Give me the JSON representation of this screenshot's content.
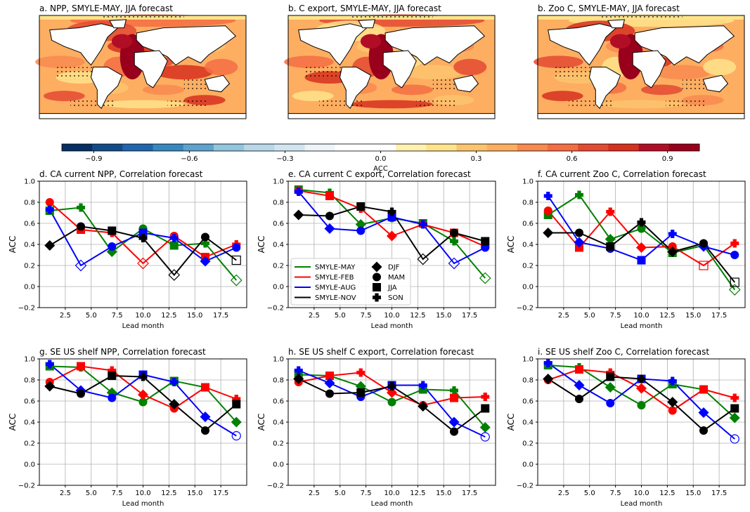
{
  "maps": [
    {
      "title": "a. NPP, SMYLE-MAY, JJA forecast"
    },
    {
      "title": "b. C export, SMYLE-MAY, JJA forecast"
    },
    {
      "title": "b. Zoo C, SMYLE-MAY, JJA forecast"
    }
  ],
  "colorbar": {
    "label": "ACC",
    "ticks": [
      "−0.9",
      "−0.6",
      "−0.3",
      "0.0",
      "0.3",
      "0.6",
      "0.9"
    ],
    "colors": [
      "#053061",
      "#134b87",
      "#2166ac",
      "#3a87bd",
      "#5fa2cb",
      "#92c5de",
      "#b8d7e8",
      "#d1e5f0",
      "#eef4f8",
      "#ffffff",
      "#ffffff",
      "#fff1b0",
      "#fee38b",
      "#fdc46f",
      "#fdae61",
      "#f88950",
      "#f46d43",
      "#e34a33",
      "#d7301f",
      "#b10e26",
      "#99001b"
    ],
    "range": [
      -1,
      1
    ]
  },
  "legend": {
    "lines": [
      {
        "label": "SMYLE-MAY",
        "color": "#008000"
      },
      {
        "label": "SMYLE-FEB",
        "color": "#ff0000"
      },
      {
        "label": "SMYLE-AUG",
        "color": "#0000ff"
      },
      {
        "label": "SMYLE-NOV",
        "color": "#000000"
      }
    ],
    "markers": [
      {
        "label": "DJF",
        "shape": "diamond"
      },
      {
        "label": "MAM",
        "shape": "circle"
      },
      {
        "label": "JJA",
        "shape": "square"
      },
      {
        "label": "SON",
        "shape": "plus"
      }
    ]
  },
  "chart_data": [
    {
      "type": "line",
      "title": "d. CA current NPP, Correlation forecast",
      "xlabel": "Lead month",
      "ylabel": "ACC",
      "xlim": [
        0,
        20
      ],
      "ylim": [
        -0.2,
        1.0
      ],
      "xticks": [
        "2.5",
        "5.0",
        "7.5",
        "10.0",
        "12.5",
        "15.0",
        "17.5"
      ],
      "yticks": [
        "−0.2",
        "0.0",
        "0.2",
        "0.4",
        "0.6",
        "0.8",
        "1.0"
      ],
      "grid": true,
      "x": [
        1,
        4,
        7,
        10,
        13,
        16,
        19
      ],
      "series": [
        {
          "name": "SMYLE-MAY",
          "color": "#008000",
          "values": [
            0.72,
            0.75,
            0.33,
            0.55,
            0.39,
            0.41,
            0.06
          ],
          "markers": [
            "square",
            "plus",
            "diamond",
            "circle",
            "square",
            "plus",
            "diamond"
          ],
          "open": [
            false,
            false,
            false,
            false,
            false,
            false,
            true
          ]
        },
        {
          "name": "SMYLE-FEB",
          "color": "#ff0000",
          "values": [
            0.8,
            0.54,
            0.51,
            0.22,
            0.48,
            0.28,
            0.4
          ],
          "markers": [
            "circle",
            "square",
            "plus",
            "diamond",
            "circle",
            "square",
            "plus"
          ],
          "open": [
            false,
            false,
            false,
            true,
            false,
            false,
            false
          ]
        },
        {
          "name": "SMYLE-AUG",
          "color": "#0000ff",
          "values": [
            0.73,
            0.2,
            0.38,
            0.51,
            0.46,
            0.24,
            0.37
          ],
          "markers": [
            "plus",
            "diamond",
            "circle",
            "square",
            "plus",
            "diamond",
            "circle"
          ],
          "open": [
            false,
            true,
            false,
            false,
            false,
            false,
            false
          ]
        },
        {
          "name": "SMYLE-NOV",
          "color": "#000000",
          "values": [
            0.39,
            0.57,
            0.53,
            0.46,
            0.11,
            0.47,
            0.25
          ],
          "markers": [
            "diamond",
            "circle",
            "square",
            "plus",
            "diamond",
            "circle",
            "square"
          ],
          "open": [
            false,
            false,
            false,
            false,
            true,
            false,
            true
          ]
        }
      ]
    },
    {
      "type": "line",
      "title": "e. CA current C export, Correlation forecast",
      "xlabel": "Lead month",
      "ylabel": "ACC",
      "xlim": [
        0,
        20
      ],
      "ylim": [
        -0.2,
        1.0
      ],
      "xticks": [
        "2.5",
        "5.0",
        "7.5",
        "10.0",
        "12.5",
        "15.0",
        "17.5"
      ],
      "yticks": [
        "−0.2",
        "0.0",
        "0.2",
        "0.4",
        "0.6",
        "0.8",
        "1.0"
      ],
      "grid": true,
      "x": [
        1,
        4,
        7,
        10,
        13,
        16,
        19
      ],
      "series": [
        {
          "name": "SMYLE-MAY",
          "color": "#008000",
          "values": [
            0.92,
            0.89,
            0.59,
            0.65,
            0.6,
            0.43,
            0.08
          ],
          "markers": [
            "square",
            "plus",
            "diamond",
            "circle",
            "square",
            "plus",
            "diamond"
          ],
          "open": [
            false,
            false,
            false,
            false,
            false,
            false,
            true
          ]
        },
        {
          "name": "SMYLE-FEB",
          "color": "#ff0000",
          "values": [
            0.91,
            0.86,
            0.74,
            0.48,
            0.59,
            0.51,
            0.38
          ],
          "markers": [
            "circle",
            "square",
            "plus",
            "diamond",
            "circle",
            "square",
            "plus"
          ],
          "open": [
            false,
            false,
            false,
            false,
            false,
            false,
            false
          ]
        },
        {
          "name": "SMYLE-AUG",
          "color": "#0000ff",
          "values": [
            0.9,
            0.55,
            0.53,
            0.66,
            0.59,
            0.22,
            0.37
          ],
          "markers": [
            "plus",
            "diamond",
            "circle",
            "square",
            "plus",
            "diamond",
            "circle"
          ],
          "open": [
            false,
            false,
            false,
            false,
            false,
            true,
            false
          ]
        },
        {
          "name": "SMYLE-NOV",
          "color": "#000000",
          "values": [
            0.68,
            0.67,
            0.76,
            0.71,
            0.26,
            0.51,
            0.43
          ],
          "markers": [
            "diamond",
            "circle",
            "square",
            "plus",
            "diamond",
            "circle",
            "square"
          ],
          "open": [
            false,
            false,
            false,
            false,
            true,
            false,
            false
          ]
        }
      ]
    },
    {
      "type": "line",
      "title": "f. CA current Zoo C, Correlation forecast",
      "xlabel": "Lead month",
      "ylabel": "ACC",
      "xlim": [
        0,
        20
      ],
      "ylim": [
        -0.2,
        1.0
      ],
      "xticks": [
        "2.5",
        "5.0",
        "7.5",
        "10.0",
        "12.5",
        "15.0",
        "17.5"
      ],
      "yticks": [
        "−0.2",
        "0.0",
        "0.2",
        "0.4",
        "0.6",
        "0.8",
        "1.0"
      ],
      "grid": true,
      "x": [
        1,
        4,
        7,
        10,
        13,
        16,
        19
      ],
      "series": [
        {
          "name": "SMYLE-MAY",
          "color": "#008000",
          "values": [
            0.68,
            0.87,
            0.45,
            0.55,
            0.32,
            0.39,
            -0.03
          ],
          "markers": [
            "square",
            "plus",
            "diamond",
            "circle",
            "square",
            "plus",
            "diamond"
          ],
          "open": [
            false,
            false,
            false,
            false,
            false,
            false,
            true
          ]
        },
        {
          "name": "SMYLE-FEB",
          "color": "#ff0000",
          "values": [
            0.72,
            0.37,
            0.71,
            0.37,
            0.38,
            0.2,
            0.41
          ],
          "markers": [
            "circle",
            "square",
            "plus",
            "diamond",
            "circle",
            "square",
            "plus"
          ],
          "open": [
            false,
            false,
            false,
            false,
            false,
            true,
            false
          ]
        },
        {
          "name": "SMYLE-AUG",
          "color": "#0000ff",
          "values": [
            0.86,
            0.42,
            0.36,
            0.25,
            0.5,
            0.38,
            0.3
          ],
          "markers": [
            "plus",
            "diamond",
            "circle",
            "square",
            "plus",
            "diamond",
            "circle"
          ],
          "open": [
            false,
            false,
            false,
            false,
            false,
            false,
            false
          ]
        },
        {
          "name": "SMYLE-NOV",
          "color": "#000000",
          "values": [
            0.51,
            0.51,
            0.38,
            0.61,
            0.33,
            0.41,
            0.04
          ],
          "markers": [
            "diamond",
            "circle",
            "square",
            "plus",
            "diamond",
            "circle",
            "square"
          ],
          "open": [
            false,
            false,
            false,
            false,
            false,
            false,
            true
          ]
        }
      ]
    },
    {
      "type": "line",
      "title": "g. SE US shelf NPP, Correlation forecast",
      "xlabel": "Lead month",
      "ylabel": "ACC",
      "xlim": [
        0,
        20
      ],
      "ylim": [
        -0.2,
        1.0
      ],
      "xticks": [
        "2.5",
        "5.0",
        "7.5",
        "10.0",
        "12.5",
        "15.0",
        "17.5"
      ],
      "yticks": [
        "−0.2",
        "0.0",
        "0.2",
        "0.4",
        "0.6",
        "0.8",
        "1.0"
      ],
      "grid": true,
      "x": [
        1,
        4,
        7,
        10,
        13,
        16,
        19
      ],
      "series": [
        {
          "name": "SMYLE-MAY",
          "color": "#008000",
          "values": [
            0.93,
            0.92,
            0.68,
            0.59,
            0.79,
            0.73,
            0.4
          ],
          "markers": [
            "square",
            "plus",
            "diamond",
            "circle",
            "square",
            "plus",
            "diamond"
          ],
          "open": [
            false,
            false,
            false,
            false,
            false,
            false,
            false
          ]
        },
        {
          "name": "SMYLE-FEB",
          "color": "#ff0000",
          "values": [
            0.78,
            0.93,
            0.89,
            0.66,
            0.53,
            0.73,
            0.62
          ],
          "markers": [
            "circle",
            "square",
            "plus",
            "diamond",
            "circle",
            "square",
            "plus"
          ],
          "open": [
            false,
            false,
            false,
            false,
            false,
            false,
            false
          ]
        },
        {
          "name": "SMYLE-AUG",
          "color": "#0000ff",
          "values": [
            0.95,
            0.7,
            0.63,
            0.85,
            0.78,
            0.45,
            0.27
          ],
          "markers": [
            "plus",
            "diamond",
            "circle",
            "square",
            "plus",
            "diamond",
            "circle"
          ],
          "open": [
            false,
            false,
            false,
            false,
            false,
            false,
            true
          ]
        },
        {
          "name": "SMYLE-NOV",
          "color": "#000000",
          "values": [
            0.74,
            0.67,
            0.84,
            0.83,
            0.57,
            0.32,
            0.57
          ],
          "markers": [
            "diamond",
            "circle",
            "square",
            "plus",
            "diamond",
            "circle",
            "square"
          ],
          "open": [
            false,
            false,
            false,
            false,
            false,
            false,
            false
          ]
        }
      ]
    },
    {
      "type": "line",
      "title": "h. SE US shelf C export, Correlation forecast",
      "xlabel": "Lead month",
      "ylabel": "ACC",
      "xlim": [
        0,
        20
      ],
      "ylim": [
        -0.2,
        1.0
      ],
      "xticks": [
        "2.5",
        "5.0",
        "7.5",
        "10.0",
        "12.5",
        "15.0",
        "17.5"
      ],
      "yticks": [
        "−0.2",
        "0.0",
        "0.2",
        "0.4",
        "0.6",
        "0.8",
        "1.0"
      ],
      "grid": true,
      "x": [
        1,
        4,
        7,
        10,
        13,
        16,
        19
      ],
      "series": [
        {
          "name": "SMYLE-MAY",
          "color": "#008000",
          "values": [
            0.85,
            0.84,
            0.74,
            0.59,
            0.71,
            0.7,
            0.35
          ],
          "markers": [
            "square",
            "plus",
            "diamond",
            "circle",
            "square",
            "plus",
            "diamond"
          ],
          "open": [
            false,
            false,
            false,
            false,
            false,
            false,
            false
          ]
        },
        {
          "name": "SMYLE-FEB",
          "color": "#ff0000",
          "values": [
            0.78,
            0.84,
            0.87,
            0.68,
            0.56,
            0.63,
            0.64
          ],
          "markers": [
            "circle",
            "square",
            "plus",
            "diamond",
            "circle",
            "square",
            "plus"
          ],
          "open": [
            false,
            false,
            false,
            false,
            false,
            false,
            false
          ]
        },
        {
          "name": "SMYLE-AUG",
          "color": "#0000ff",
          "values": [
            0.89,
            0.77,
            0.64,
            0.75,
            0.75,
            0.4,
            0.26
          ],
          "markers": [
            "plus",
            "diamond",
            "circle",
            "square",
            "plus",
            "diamond",
            "circle"
          ],
          "open": [
            false,
            false,
            false,
            false,
            false,
            false,
            true
          ]
        },
        {
          "name": "SMYLE-NOV",
          "color": "#000000",
          "values": [
            0.81,
            0.67,
            0.68,
            0.74,
            0.55,
            0.31,
            0.53
          ],
          "markers": [
            "diamond",
            "circle",
            "square",
            "plus",
            "diamond",
            "circle",
            "square"
          ],
          "open": [
            false,
            false,
            false,
            false,
            false,
            false,
            false
          ]
        }
      ]
    },
    {
      "type": "line",
      "title": "i. SE US shelf Zoo C, Correlation forecast",
      "xlabel": "Lead month",
      "ylabel": "ACC",
      "xlim": [
        0,
        20
      ],
      "ylim": [
        -0.2,
        1.0
      ],
      "xticks": [
        "2.5",
        "5.0",
        "7.5",
        "10.0",
        "12.5",
        "15.0",
        "17.5"
      ],
      "yticks": [
        "−0.2",
        "0.0",
        "0.2",
        "0.4",
        "0.6",
        "0.8",
        "1.0"
      ],
      "grid": true,
      "x": [
        1,
        4,
        7,
        10,
        13,
        16,
        19
      ],
      "series": [
        {
          "name": "SMYLE-MAY",
          "color": "#008000",
          "values": [
            0.94,
            0.92,
            0.73,
            0.56,
            0.76,
            0.71,
            0.44
          ],
          "markers": [
            "square",
            "plus",
            "diamond",
            "circle",
            "square",
            "plus",
            "diamond"
          ],
          "open": [
            false,
            false,
            false,
            false,
            false,
            false,
            false
          ]
        },
        {
          "name": "SMYLE-FEB",
          "color": "#ff0000",
          "values": [
            0.8,
            0.9,
            0.87,
            0.72,
            0.51,
            0.71,
            0.63
          ],
          "markers": [
            "circle",
            "square",
            "plus",
            "diamond",
            "circle",
            "square",
            "plus"
          ],
          "open": [
            false,
            false,
            false,
            false,
            false,
            false,
            false
          ]
        },
        {
          "name": "SMYLE-AUG",
          "color": "#0000ff",
          "values": [
            0.96,
            0.75,
            0.58,
            0.81,
            0.79,
            0.49,
            0.24
          ],
          "markers": [
            "plus",
            "diamond",
            "circle",
            "square",
            "plus",
            "diamond",
            "circle"
          ],
          "open": [
            false,
            false,
            false,
            false,
            false,
            false,
            true
          ]
        },
        {
          "name": "SMYLE-NOV",
          "color": "#000000",
          "values": [
            0.81,
            0.62,
            0.83,
            0.81,
            0.59,
            0.32,
            0.53
          ],
          "markers": [
            "diamond",
            "circle",
            "square",
            "plus",
            "diamond",
            "circle",
            "square"
          ],
          "open": [
            false,
            false,
            false,
            false,
            false,
            false,
            false
          ]
        }
      ]
    }
  ]
}
